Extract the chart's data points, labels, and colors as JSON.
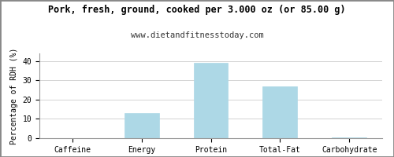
{
  "title": "Pork, fresh, ground, cooked per 3.000 oz (or 85.00 g)",
  "subtitle": "www.dietandfitnesstoday.com",
  "categories": [
    "Caffeine",
    "Energy",
    "Protein",
    "Total-Fat",
    "Carbohydrate"
  ],
  "values": [
    0,
    13,
    39,
    27,
    0.5
  ],
  "bar_color": "#add8e6",
  "bar_edge_color": "#add8e6",
  "ylabel": "Percentage of RDH (%)",
  "ylim": [
    0,
    44
  ],
  "yticks": [
    0,
    10,
    20,
    30,
    40
  ],
  "grid_color": "#cccccc",
  "bg_color": "#ffffff",
  "title_fontsize": 8.5,
  "subtitle_fontsize": 7.5,
  "tick_fontsize": 7,
  "ylabel_fontsize": 7,
  "border_color": "#999999",
  "frame_color": "#888888"
}
